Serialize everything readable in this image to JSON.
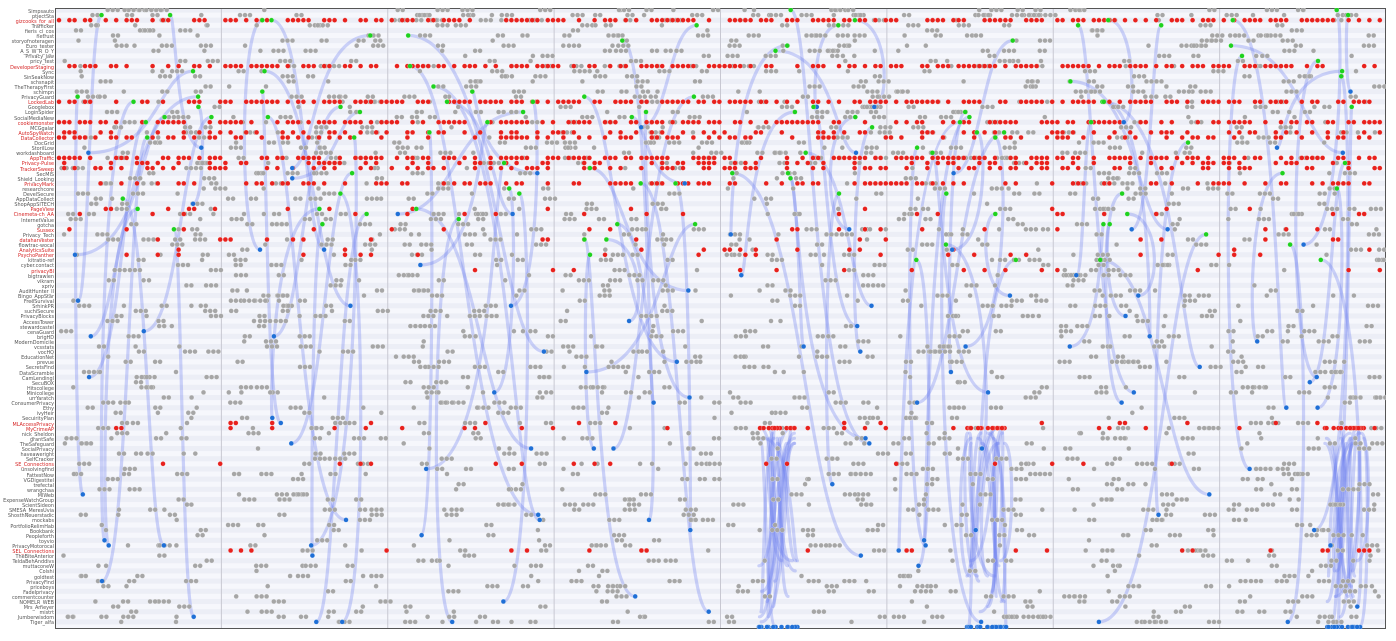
{
  "row_labels": [
    {
      "text": "Simpsauto",
      "red": false
    },
    {
      "text": "ptjectSta",
      "red": false
    },
    {
      "text": "gizcooks_for_all",
      "red": true
    },
    {
      "text": "Trafficker",
      "red": false
    },
    {
      "text": "fieris_ci_cos",
      "red": false
    },
    {
      "text": "netrust",
      "red": false
    },
    {
      "text": "storyofnoteragen",
      "red": false
    },
    {
      "text": "Euro_tester",
      "red": false
    },
    {
      "text": "A_S_W_R_O_Y",
      "red": false
    },
    {
      "text": "Privacy_Jaw",
      "red": false
    },
    {
      "text": "pricy_test",
      "red": false
    },
    {
      "text": "DeveloperStaging",
      "red": true
    },
    {
      "text": "Sync",
      "red": false
    },
    {
      "text": "SinSeakNow",
      "red": false
    },
    {
      "text": "schsnapit",
      "red": false
    },
    {
      "text": "TheTherapyFirst",
      "red": false
    },
    {
      "text": "schimpn",
      "red": false
    },
    {
      "text": "PrivacyGuard",
      "red": false
    },
    {
      "text": "LockedLab",
      "red": true
    },
    {
      "text": "Googlebox",
      "red": false
    },
    {
      "text": "LoginSpider",
      "red": false
    },
    {
      "text": "SocialMediaNew",
      "red": false
    },
    {
      "text": "cookiemonster",
      "red": true
    },
    {
      "text": "MCGgalar",
      "red": false
    },
    {
      "text": "AutoSpyWatch",
      "red": true
    },
    {
      "text": "DataCollector",
      "red": true
    },
    {
      "text": "DocGrid",
      "red": false
    },
    {
      "text": "StorilLow",
      "red": false
    },
    {
      "text": "workdashboard",
      "red": false
    },
    {
      "text": "AppTraffic",
      "red": true
    },
    {
      "text": "Privacy-Pulse",
      "red": true
    },
    {
      "text": "TrackerSweep",
      "red": true
    },
    {
      "text": "SecMIS",
      "red": false
    },
    {
      "text": "Shield_Looking",
      "red": false
    },
    {
      "text": "PrivacyMark",
      "red": true
    },
    {
      "text": "researchcore",
      "red": false
    },
    {
      "text": "DevelSecure",
      "red": false
    },
    {
      "text": "AppDataCollect",
      "red": false
    },
    {
      "text": "ShopAppSITECH",
      "red": false
    },
    {
      "text": "PageView",
      "red": true
    },
    {
      "text": "Cinemeta-ch_AA",
      "red": true
    },
    {
      "text": "InternetValue",
      "red": false
    },
    {
      "text": "gotcha",
      "red": false
    },
    {
      "text": "Sussex",
      "red": true
    },
    {
      "text": "Privacy_Tech",
      "red": false
    },
    {
      "text": "dataharvester",
      "red": true
    },
    {
      "text": "flowtrac-wocal",
      "red": false
    },
    {
      "text": "AnalyticsSuite",
      "red": true
    },
    {
      "text": "PsychoPanther",
      "red": true
    },
    {
      "text": "kitratio-ref",
      "red": false
    },
    {
      "text": "cyber.contact",
      "red": false
    },
    {
      "text": "privacyBI",
      "red": true
    },
    {
      "text": "bigtrawlen",
      "red": false
    },
    {
      "text": "vikram",
      "red": false
    },
    {
      "text": "xpriv",
      "red": false
    },
    {
      "text": "AuditHunter_II",
      "red": false
    },
    {
      "text": "Bingo_AppStar",
      "red": false
    },
    {
      "text": "FreeSurvival",
      "red": false
    },
    {
      "text": "SrhinkPR",
      "red": false
    },
    {
      "text": "suchiSecure",
      "red": false
    },
    {
      "text": "PrivacyBlocks",
      "red": false
    },
    {
      "text": "AccessTower",
      "red": false
    },
    {
      "text": "stewardcastel",
      "red": false
    },
    {
      "text": "cenaGuard",
      "red": false
    },
    {
      "text": "brigHD",
      "red": false
    },
    {
      "text": "ModernDomicile",
      "red": false
    },
    {
      "text": "vcsstats",
      "red": false
    },
    {
      "text": "vocHQ",
      "red": false
    },
    {
      "text": "EducationNet",
      "red": false
    },
    {
      "text": "prevue",
      "red": false
    },
    {
      "text": "SecretsFind",
      "red": false
    },
    {
      "text": "DataScramble",
      "red": false
    },
    {
      "text": "CamLendingl",
      "red": false
    },
    {
      "text": "SecuBOX",
      "red": false
    },
    {
      "text": "Hitscollege",
      "red": false
    },
    {
      "text": "Minicollege",
      "red": false
    },
    {
      "text": "urrYaratch",
      "red": false
    },
    {
      "text": "ConsumerPrivacy",
      "red": false
    },
    {
      "text": "Ethy",
      "red": false
    },
    {
      "text": "ivyHeir",
      "red": false
    },
    {
      "text": "SecuirityPlan",
      "red": false
    },
    {
      "text": "MLAccessPrivacy",
      "red": true
    },
    {
      "text": "MyCrimeAP",
      "red": true
    },
    {
      "text": "nick_Sheldon",
      "red": false
    },
    {
      "text": "grantSafe",
      "red": false
    },
    {
      "text": "TheSafeguard",
      "red": false
    },
    {
      "text": "SocialPrivacy",
      "red": false
    },
    {
      "text": "haveaweright",
      "red": false
    },
    {
      "text": "SelfCracker",
      "red": false
    },
    {
      "text": "SE_Connections",
      "red": true
    },
    {
      "text": "unsolvingfind",
      "red": false
    },
    {
      "text": "FattestNow",
      "red": false
    },
    {
      "text": "VGDigestitel",
      "red": false
    },
    {
      "text": "trefectal",
      "red": false
    },
    {
      "text": "wrangchaa",
      "red": false
    },
    {
      "text": "MlWeb",
      "red": false
    },
    {
      "text": "ExpenseWatchGroup",
      "red": false
    },
    {
      "text": "ScientSideon",
      "red": false
    },
    {
      "text": "SMESA_MeresUvia",
      "red": false
    },
    {
      "text": "ShosthNeuerstadic",
      "red": false
    },
    {
      "text": "mockabs",
      "red": false
    },
    {
      "text": "PortfolioRelimHab",
      "red": false
    },
    {
      "text": "Bookbank",
      "red": false
    },
    {
      "text": "Peopleforth",
      "red": false
    },
    {
      "text": "toyvio",
      "red": false
    },
    {
      "text": "PrivacyMotorocal",
      "red": false
    },
    {
      "text": "SEL_Connections",
      "red": true
    },
    {
      "text": "TheBiteAnterior",
      "red": false
    },
    {
      "text": "TeldaBehAnddivs",
      "red": false
    },
    {
      "text": "muttaconeW",
      "red": false
    },
    {
      "text": "Colshi",
      "red": false
    },
    {
      "text": "goldtest",
      "red": false
    },
    {
      "text": "PrivacyFind",
      "red": false
    },
    {
      "text": "priceboys",
      "red": false
    },
    {
      "text": "FadeIprivacy",
      "red": false
    },
    {
      "text": "commentcounter",
      "red": false
    },
    {
      "text": "NOMELR_WEB",
      "red": false
    },
    {
      "text": "Mrs_Ameyer",
      "red": false
    },
    {
      "text": "mistrt",
      "red": false
    },
    {
      "text": "Jumberwisdom",
      "red": false
    },
    {
      "text": "Tiger_alfa",
      "red": false
    }
  ],
  "colors": {
    "background": "#f6f7fc",
    "stripe": "#eceef6",
    "default_node": "#a6a6a6",
    "flagged_node": "#e8211d",
    "source_node": "#1ed21e",
    "target_node": "#1f6fd6",
    "path": "#6e7ef0",
    "divider": "#c8c8d2",
    "label_red": "#d62424",
    "label_gray": "#555555"
  },
  "column_groups": 8,
  "node_types": [
    "default-node",
    "flagged-node",
    "source-node",
    "target-node"
  ]
}
